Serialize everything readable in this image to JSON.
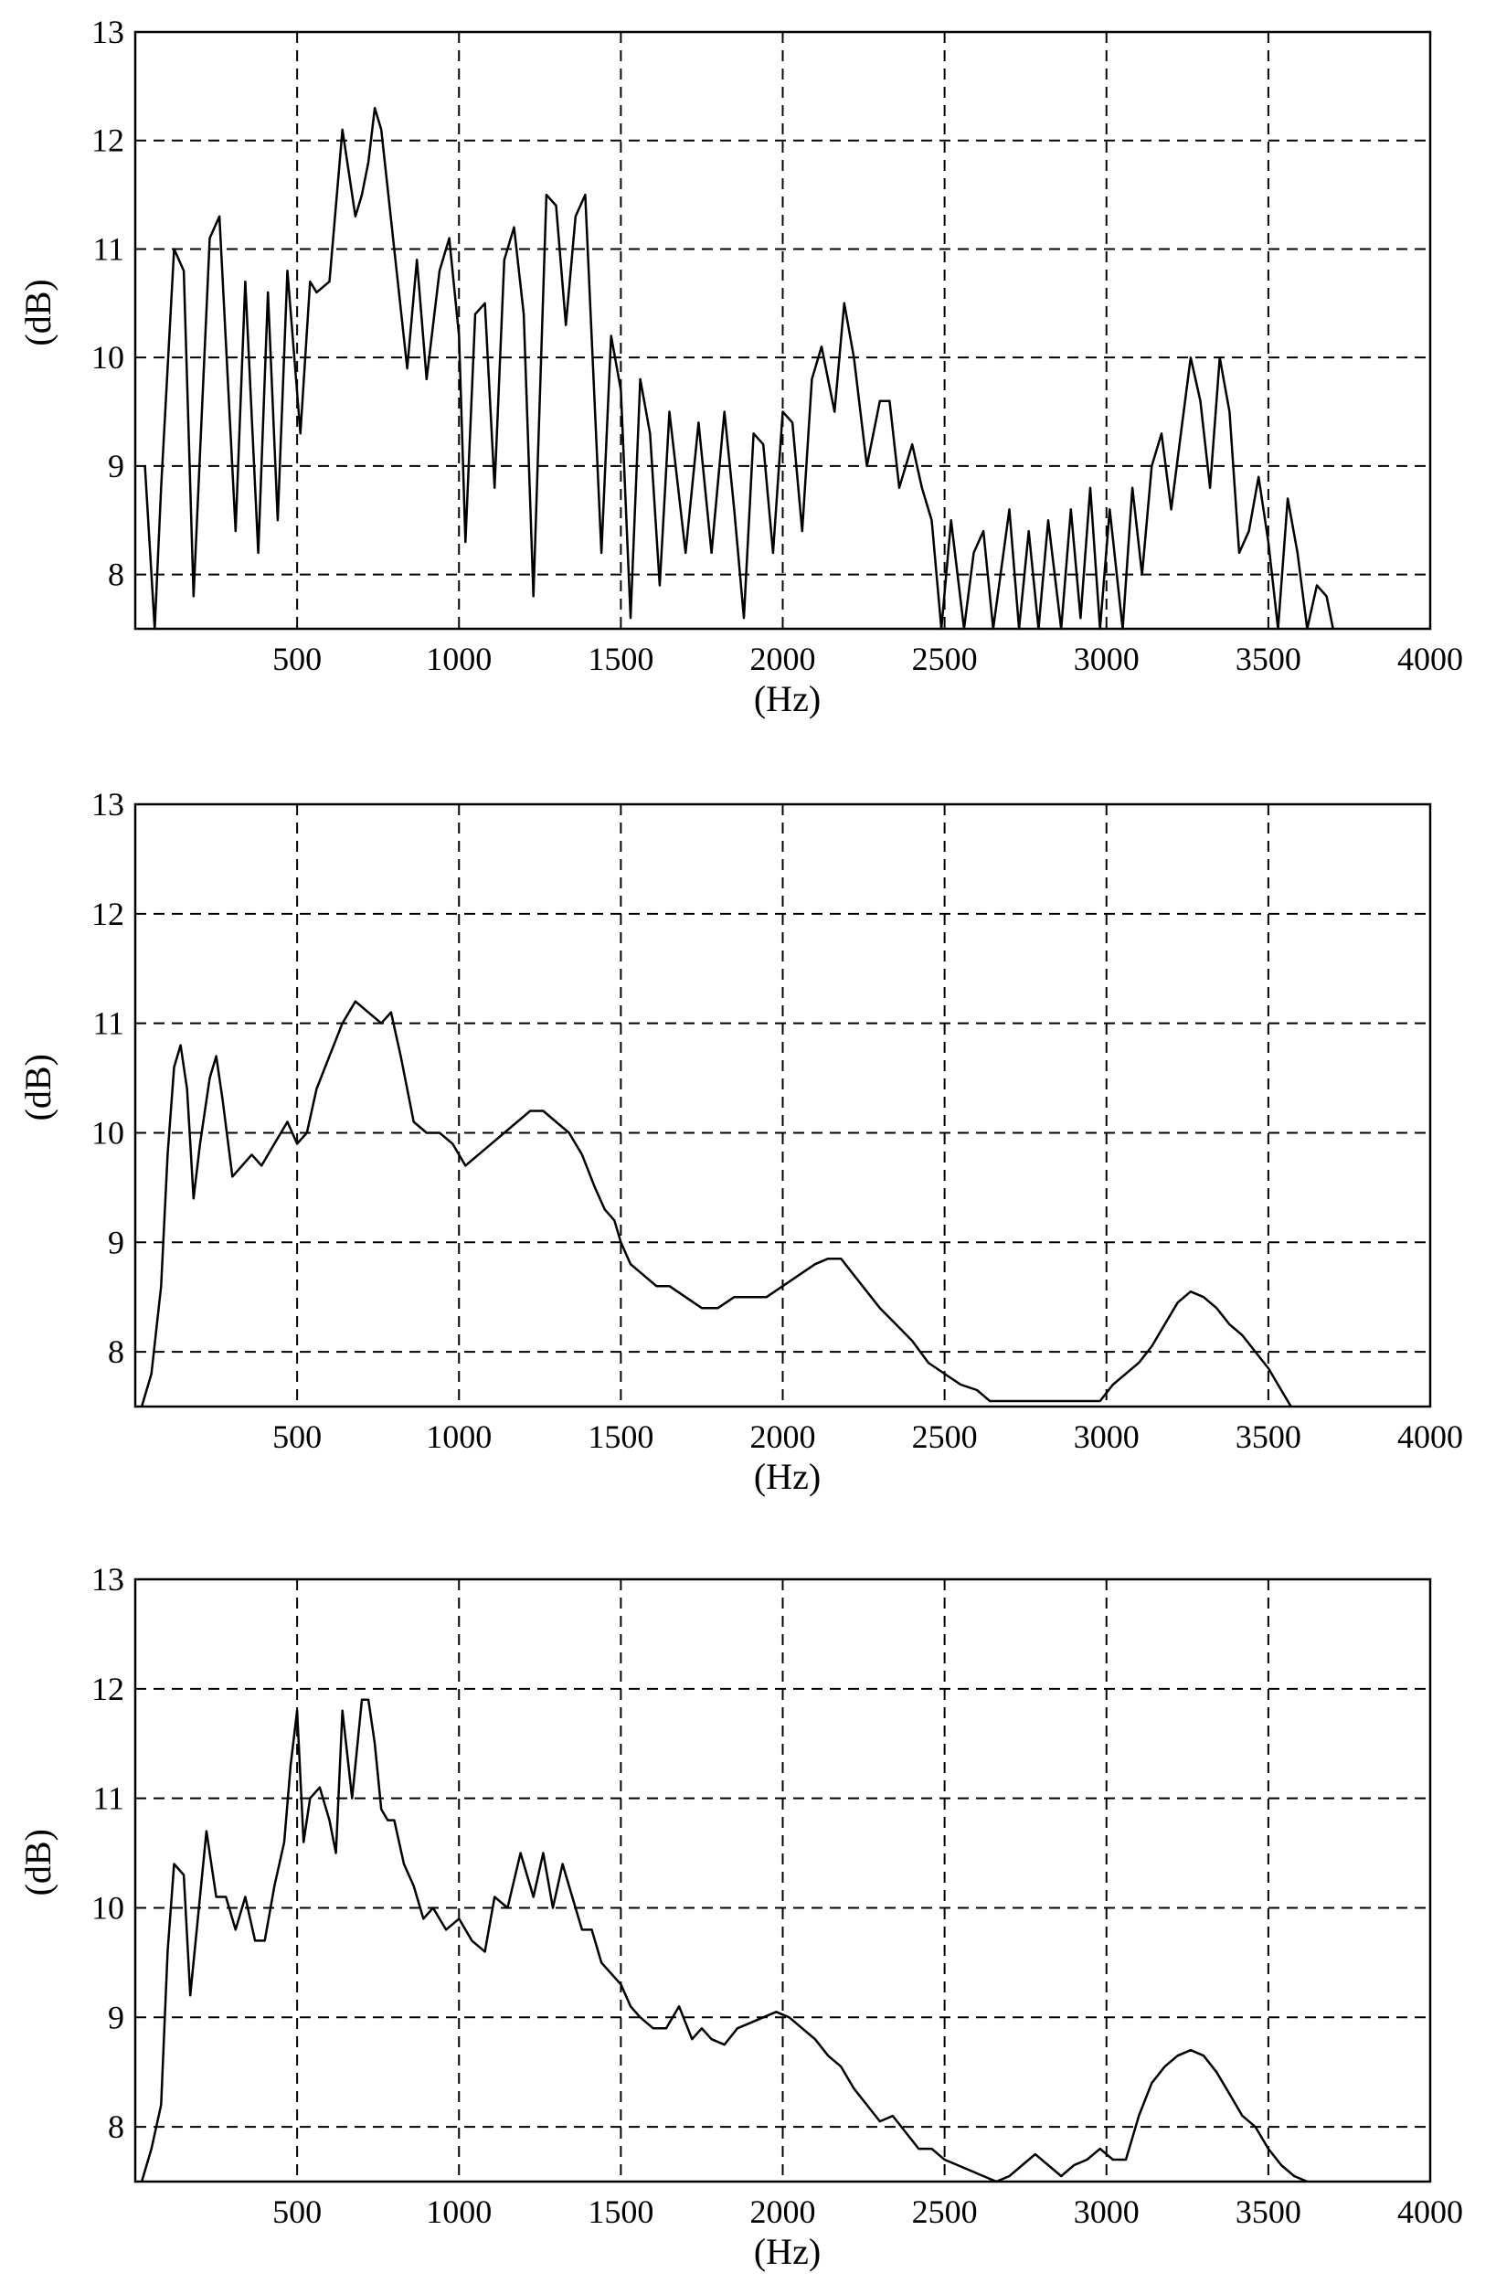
{
  "chart_data": [
    {
      "type": "line",
      "xlabel": "(Hz)",
      "ylabel": "(dB)",
      "xlim": [
        0,
        4000
      ],
      "ylim": [
        7.5,
        13
      ],
      "xticks": [
        "500",
        "1000",
        "1500",
        "2000",
        "2500",
        "3000",
        "3500",
        "4000"
      ],
      "yticks": [
        "8",
        "9",
        "10",
        "11",
        "12",
        "13"
      ],
      "grid": true,
      "series": [
        {
          "x": [
            30,
            60,
            80,
            120,
            150,
            180,
            230,
            260,
            310,
            340,
            380,
            410,
            440,
            470,
            510,
            540,
            560,
            600,
            640,
            680,
            700,
            720,
            740,
            760,
            800,
            840,
            870,
            900,
            940,
            970,
            1000,
            1020,
            1050,
            1080,
            1110,
            1140,
            1170,
            1200,
            1230,
            1270,
            1300,
            1330,
            1360,
            1390,
            1440,
            1470,
            1500,
            1530,
            1560,
            1590,
            1620,
            1650,
            1700,
            1740,
            1780,
            1820,
            1850,
            1880,
            1910,
            1940,
            1970,
            2000,
            2030,
            2060,
            2090,
            2120,
            2160,
            2190,
            2220,
            2260,
            2300,
            2330,
            2360,
            2400,
            2430,
            2460,
            2490,
            2520,
            2560,
            2590,
            2620,
            2650,
            2700,
            2730,
            2760,
            2790,
            2820,
            2860,
            2890,
            2920,
            2950,
            2980,
            3010,
            3050,
            3080,
            3110,
            3140,
            3170,
            3200,
            3230,
            3260,
            3290,
            3320,
            3350,
            3380,
            3410,
            3440,
            3470,
            3500,
            3530,
            3560,
            3590,
            3620,
            3650,
            3680,
            3700
          ],
          "values": [
            9.0,
            7.5,
            8.8,
            11.0,
            10.8,
            7.8,
            11.1,
            11.3,
            8.4,
            10.7,
            8.2,
            10.6,
            8.5,
            10.8,
            9.3,
            10.7,
            10.6,
            10.7,
            12.1,
            11.3,
            11.5,
            11.8,
            12.3,
            12.1,
            11.0,
            9.9,
            10.9,
            9.8,
            10.8,
            11.1,
            10.2,
            8.3,
            10.4,
            10.5,
            8.8,
            10.9,
            11.2,
            10.4,
            7.8,
            11.5,
            11.4,
            10.3,
            11.3,
            11.5,
            8.2,
            10.2,
            9.7,
            7.6,
            9.8,
            9.3,
            7.9,
            9.5,
            8.2,
            9.4,
            8.2,
            9.5,
            8.6,
            7.6,
            9.3,
            9.2,
            8.2,
            9.5,
            9.4,
            8.4,
            9.8,
            10.1,
            9.5,
            10.5,
            10.0,
            9.0,
            9.6,
            9.6,
            8.8,
            9.2,
            8.8,
            8.5,
            7.5,
            8.5,
            7.5,
            8.2,
            8.4,
            7.5,
            8.6,
            7.5,
            8.4,
            7.5,
            8.5,
            7.5,
            8.6,
            7.6,
            8.8,
            7.5,
            8.6,
            7.5,
            8.8,
            8.0,
            9.0,
            9.3,
            8.6,
            9.3,
            10.0,
            9.6,
            8.8,
            10.0,
            9.5,
            8.2,
            8.4,
            8.9,
            8.3,
            7.5,
            8.7,
            8.2,
            7.5,
            7.9,
            7.8,
            7.5
          ]
        }
      ]
    },
    {
      "type": "line",
      "xlabel": "(Hz)",
      "ylabel": "(dB)",
      "xlim": [
        0,
        4000
      ],
      "ylim": [
        7.5,
        13
      ],
      "xticks": [
        "500",
        "1000",
        "1500",
        "2000",
        "2500",
        "3000",
        "3500",
        "4000"
      ],
      "yticks": [
        "8",
        "9",
        "10",
        "11",
        "12",
        "13"
      ],
      "grid": true,
      "series": [
        {
          "x": [
            20,
            50,
            80,
            100,
            120,
            140,
            160,
            180,
            200,
            230,
            250,
            270,
            300,
            330,
            360,
            390,
            430,
            470,
            500,
            530,
            560,
            600,
            640,
            680,
            720,
            760,
            790,
            820,
            860,
            900,
            940,
            980,
            1020,
            1060,
            1100,
            1140,
            1180,
            1220,
            1260,
            1300,
            1340,
            1380,
            1420,
            1450,
            1480,
            1500,
            1530,
            1570,
            1610,
            1650,
            1700,
            1750,
            1800,
            1850,
            1900,
            1950,
            2000,
            2050,
            2100,
            2140,
            2180,
            2220,
            2260,
            2300,
            2350,
            2400,
            2450,
            2500,
            2550,
            2600,
            2640,
            2980,
            3020,
            3060,
            3100,
            3140,
            3180,
            3220,
            3260,
            3300,
            3340,
            3380,
            3420,
            3460,
            3500,
            3540,
            3570
          ],
          "values": [
            7.5,
            7.8,
            8.6,
            9.8,
            10.6,
            10.8,
            10.4,
            9.4,
            9.9,
            10.5,
            10.7,
            10.3,
            9.6,
            9.7,
            9.8,
            9.7,
            9.9,
            10.1,
            9.9,
            10.0,
            10.4,
            10.7,
            11.0,
            11.2,
            11.1,
            11.0,
            11.1,
            10.7,
            10.1,
            10.0,
            10.0,
            9.9,
            9.7,
            9.8,
            9.9,
            10.0,
            10.1,
            10.2,
            10.2,
            10.1,
            10.0,
            9.8,
            9.5,
            9.3,
            9.2,
            9.0,
            8.8,
            8.7,
            8.6,
            8.6,
            8.5,
            8.4,
            8.4,
            8.5,
            8.5,
            8.5,
            8.6,
            8.7,
            8.8,
            8.85,
            8.85,
            8.7,
            8.55,
            8.4,
            8.25,
            8.1,
            7.9,
            7.8,
            7.7,
            7.65,
            7.55,
            7.55,
            7.7,
            7.8,
            7.9,
            8.05,
            8.25,
            8.45,
            8.55,
            8.5,
            8.4,
            8.25,
            8.15,
            8.0,
            7.85,
            7.65,
            7.5
          ]
        }
      ]
    },
    {
      "type": "line",
      "xlabel": "(Hz)",
      "ylabel": "(dB)",
      "xlim": [
        0,
        4000
      ],
      "ylim": [
        7.5,
        13
      ],
      "xticks": [
        "500",
        "1000",
        "1500",
        "2000",
        "2500",
        "3000",
        "3500",
        "4000"
      ],
      "yticks": [
        "8",
        "9",
        "10",
        "11",
        "12",
        "13"
      ],
      "grid": true,
      "series": [
        {
          "x": [
            20,
            50,
            80,
            100,
            120,
            150,
            170,
            190,
            220,
            250,
            280,
            310,
            340,
            370,
            400,
            430,
            460,
            480,
            500,
            520,
            540,
            570,
            600,
            620,
            640,
            670,
            700,
            720,
            740,
            760,
            780,
            800,
            830,
            860,
            890,
            920,
            960,
            1000,
            1040,
            1080,
            1110,
            1150,
            1190,
            1230,
            1260,
            1290,
            1320,
            1350,
            1380,
            1410,
            1440,
            1470,
            1500,
            1530,
            1560,
            1600,
            1640,
            1680,
            1720,
            1750,
            1780,
            1820,
            1860,
            1900,
            1940,
            1980,
            2020,
            2060,
            2100,
            2140,
            2180,
            2220,
            2260,
            2300,
            2340,
            2380,
            2420,
            2460,
            2500,
            2540,
            2580,
            2620,
            2660,
            2700,
            2740,
            2780,
            2820,
            2860,
            2900,
            2940,
            2980,
            3020,
            3060,
            3080,
            3100,
            3140,
            3180,
            3220,
            3260,
            3300,
            3340,
            3380,
            3420,
            3460,
            3500,
            3540,
            3580,
            3620
          ],
          "values": [
            7.5,
            7.8,
            8.2,
            9.6,
            10.4,
            10.3,
            9.2,
            9.8,
            10.7,
            10.1,
            10.1,
            9.8,
            10.1,
            9.7,
            9.7,
            10.2,
            10.6,
            11.3,
            11.8,
            10.6,
            11.0,
            11.1,
            10.8,
            10.5,
            11.8,
            11.0,
            11.9,
            11.9,
            11.5,
            10.9,
            10.8,
            10.8,
            10.4,
            10.2,
            9.9,
            10.0,
            9.8,
            9.9,
            9.7,
            9.6,
            10.1,
            10.0,
            10.5,
            10.1,
            10.5,
            10.0,
            10.4,
            10.1,
            9.8,
            9.8,
            9.5,
            9.4,
            9.3,
            9.1,
            9.0,
            8.9,
            8.9,
            9.1,
            8.8,
            8.9,
            8.8,
            8.75,
            8.9,
            8.95,
            9.0,
            9.05,
            9.0,
            8.9,
            8.8,
            8.65,
            8.55,
            8.35,
            8.2,
            8.05,
            8.1,
            7.95,
            7.8,
            7.8,
            7.7,
            7.65,
            7.6,
            7.55,
            7.5,
            7.55,
            7.65,
            7.75,
            7.65,
            7.55,
            7.65,
            7.7,
            7.8,
            7.7,
            7.7,
            7.9,
            8.1,
            8.4,
            8.55,
            8.65,
            8.7,
            8.65,
            8.5,
            8.3,
            8.1,
            8.0,
            7.8,
            7.65,
            7.55,
            7.5
          ]
        }
      ]
    }
  ]
}
